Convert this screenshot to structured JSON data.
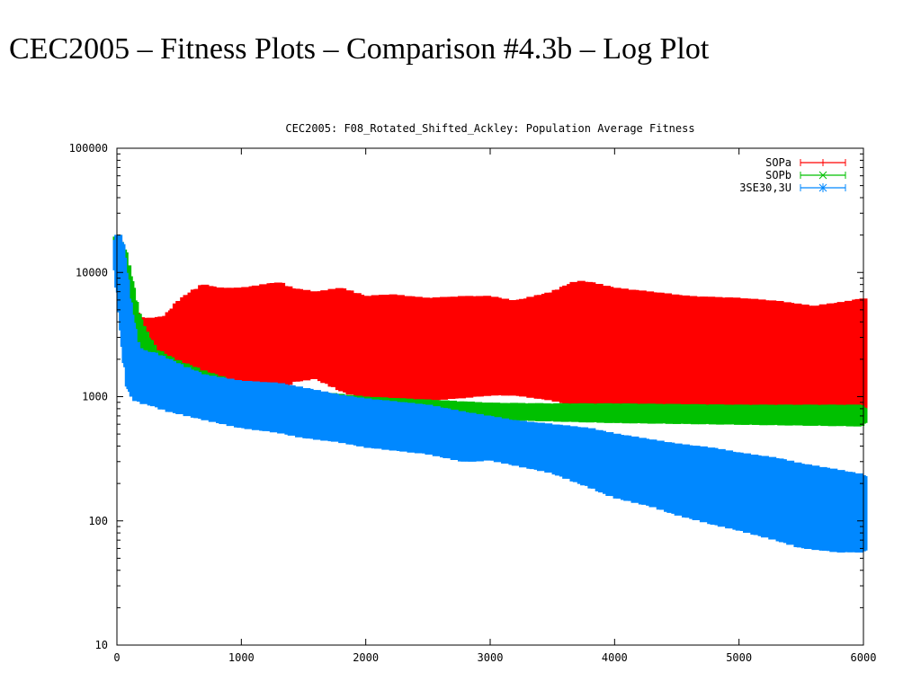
{
  "slide": {
    "title": "CEC2005 – Fitness Plots – Comparison #4.3b – Log Plot"
  },
  "chart_data": {
    "type": "line",
    "title": "CEC2005: F08_Rotated_Shifted_Ackley: Population Average Fitness",
    "xlabel": "",
    "ylabel": "",
    "xlim": [
      0,
      6000
    ],
    "ylim": [
      10,
      100000
    ],
    "yscale": "log",
    "grid": false,
    "legend_position": "top-right",
    "x_ticks": [
      "0",
      "1000",
      "2000",
      "3000",
      "4000",
      "5000",
      "6000"
    ],
    "y_ticks": [
      "10",
      "100",
      "1000",
      "10000",
      "100000"
    ],
    "series": [
      {
        "name": "SOPa",
        "color": "#ff0000",
        "marker": "+",
        "x": [
          0,
          50,
          100,
          150,
          200,
          300,
          400,
          500,
          600,
          700,
          800,
          1000,
          1200,
          1300,
          1400,
          1600,
          1800,
          2000,
          2200,
          2500,
          2800,
          3000,
          3200,
          3500,
          3700,
          3800,
          4000,
          4300,
          4600,
          5000,
          5300,
          5600,
          5900,
          6000
        ],
        "low": [
          17000,
          9000,
          4500,
          2800,
          2000,
          1700,
          1600,
          1400,
          1300,
          1250,
          1300,
          1250,
          1200,
          1150,
          1400,
          1500,
          1200,
          1000,
          950,
          1000,
          1050,
          1100,
          1100,
          1000,
          900,
          950,
          800,
          800,
          800,
          800,
          800,
          800,
          750,
          750
        ],
        "high": [
          19000,
          12000,
          7000,
          4500,
          4000,
          4000,
          4200,
          5500,
          6500,
          7500,
          7000,
          7000,
          7500,
          7800,
          7000,
          6500,
          7000,
          6000,
          6200,
          5800,
          6000,
          6000,
          5500,
          6500,
          8000,
          7800,
          7000,
          6500,
          6000,
          5800,
          5500,
          5000,
          5500,
          5800
        ]
      },
      {
        "name": "SOPb",
        "color": "#00c000",
        "marker": "x",
        "x": [
          0,
          50,
          100,
          150,
          200,
          300,
          400,
          500,
          700,
          1000,
          1500,
          2000,
          2500,
          3000,
          3500,
          4000,
          4500,
          5000,
          5500,
          6000
        ],
        "low": [
          13000,
          7500,
          4000,
          2200,
          2000,
          1700,
          1500,
          1400,
          1200,
          1000,
          900,
          820,
          780,
          700,
          680,
          660,
          650,
          640,
          630,
          620
        ],
        "high": [
          18000,
          15000,
          9000,
          5000,
          3500,
          2300,
          2000,
          1800,
          1500,
          1200,
          1050,
          930,
          880,
          830,
          820,
          820,
          810,
          800,
          800,
          800
        ]
      },
      {
        "name": "3SE30,3U",
        "color": "#0088ff",
        "marker": "*",
        "x": [
          0,
          30,
          60,
          100,
          150,
          200,
          300,
          400,
          500,
          700,
          1000,
          1300,
          1500,
          1800,
          2000,
          2500,
          2800,
          3000,
          3200,
          3500,
          3800,
          4000,
          4300,
          4500,
          4800,
          5000,
          5300,
          5500,
          5800,
          6000
        ],
        "low": [
          10000,
          6000,
          2500,
          1200,
          1000,
          950,
          900,
          820,
          780,
          700,
          600,
          550,
          500,
          460,
          420,
          370,
          320,
          330,
          300,
          260,
          200,
          165,
          140,
          120,
          100,
          90,
          75,
          65,
          60,
          60
        ],
        "high": [
          19000,
          18000,
          10000,
          5000,
          2600,
          2200,
          2100,
          1900,
          1700,
          1400,
          1250,
          1200,
          1100,
          960,
          900,
          800,
          700,
          650,
          600,
          560,
          520,
          470,
          420,
          390,
          360,
          330,
          300,
          270,
          240,
          220
        ]
      }
    ]
  }
}
